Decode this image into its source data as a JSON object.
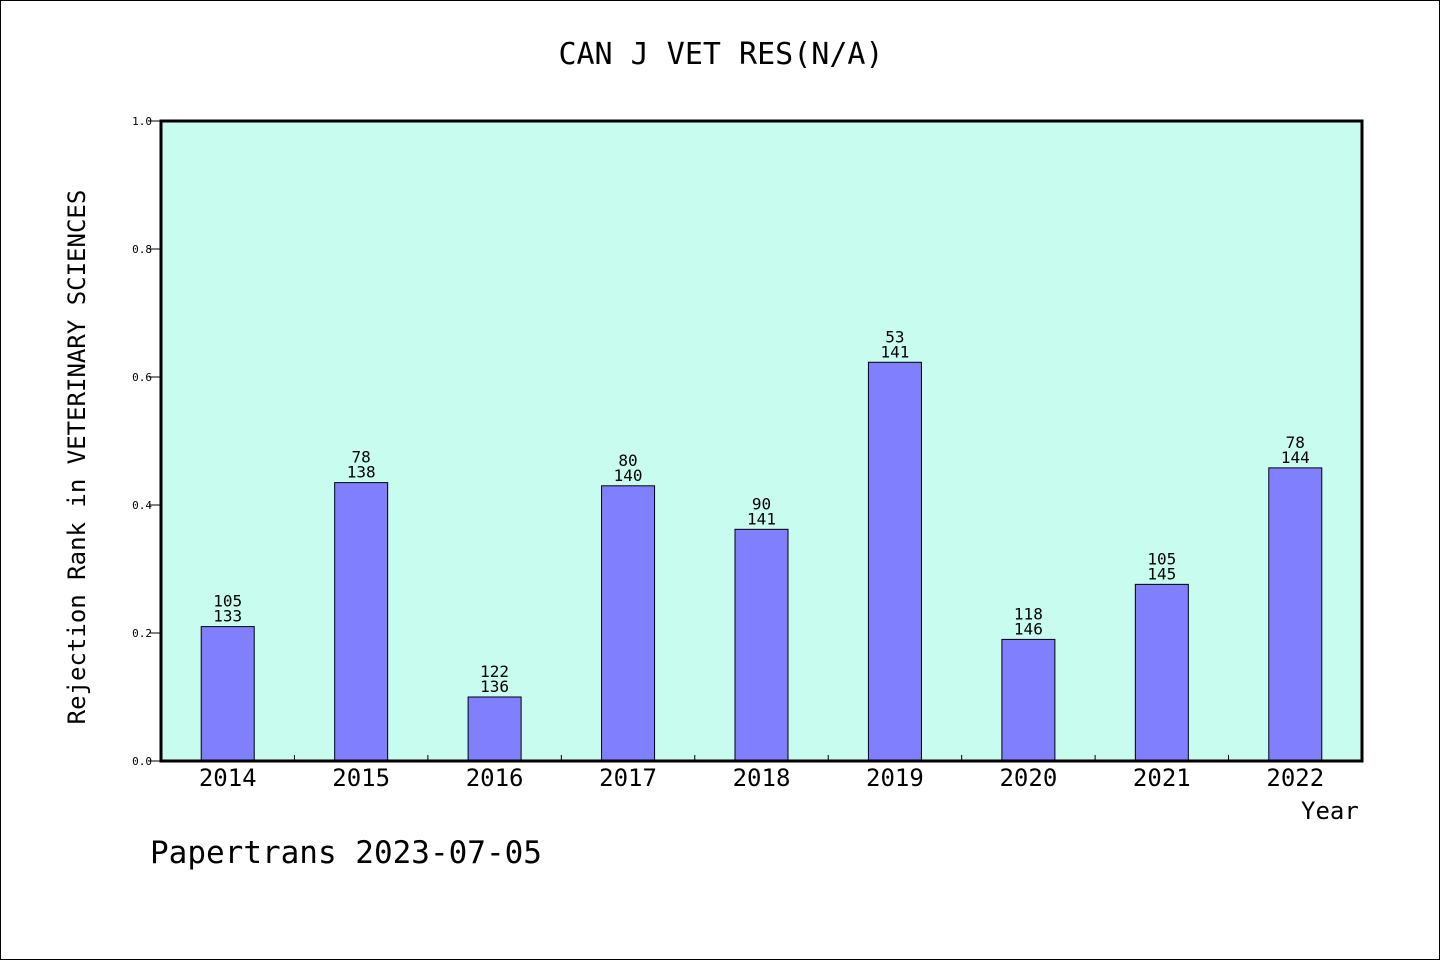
{
  "chart_data": {
    "type": "bar",
    "title": "CAN J VET RES(N/A)",
    "xlabel": "Year",
    "ylabel": "Rejection Rank in VETERINARY SCIENCES",
    "categories": [
      "2014",
      "2015",
      "2016",
      "2017",
      "2018",
      "2019",
      "2020",
      "2021",
      "2022"
    ],
    "values": [
      0.21,
      0.435,
      0.1,
      0.43,
      0.362,
      0.623,
      0.19,
      0.276,
      0.458
    ],
    "rank_labels": [
      "105",
      "78",
      "122",
      "80",
      "90",
      "53",
      "118",
      "105",
      "78"
    ],
    "total_labels": [
      "133",
      "138",
      "136",
      "140",
      "141",
      "141",
      "146",
      "145",
      "144"
    ],
    "ylim": [
      0,
      1.0
    ],
    "yticks": [
      "0.0",
      "0.2",
      "0.4",
      "0.6",
      "0.8",
      "1.0"
    ],
    "grid": false,
    "colors": {
      "bar": "#8080ff",
      "plot_bg": "#c8fcee",
      "axis": "#000000"
    }
  },
  "footer": {
    "credit": "Papertrans 2023-07-05"
  }
}
